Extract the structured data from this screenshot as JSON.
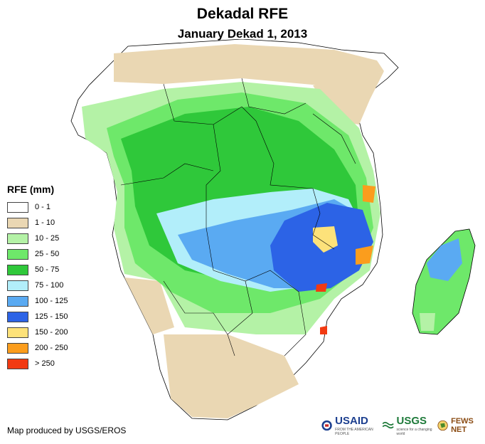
{
  "header": {
    "title": "Dekadal RFE",
    "subtitle": "January Dekad 1, 2013"
  },
  "legend": {
    "title": "RFE (mm)",
    "items": [
      {
        "label": "0 - 1",
        "color": "#ffffff"
      },
      {
        "label": "1 - 10",
        "color": "#ead7b3"
      },
      {
        "label": "10 - 25",
        "color": "#b4f2a6"
      },
      {
        "label": "25 - 50",
        "color": "#6ee86a"
      },
      {
        "label": "50 - 75",
        "color": "#2fc83a"
      },
      {
        "label": "75 - 100",
        "color": "#b2eefa"
      },
      {
        "label": "100 - 125",
        "color": "#5aaaf2"
      },
      {
        "label": "125 - 150",
        "color": "#2c63e6"
      },
      {
        "label": "150 - 200",
        "color": "#fde27a"
      },
      {
        "label": "200 - 250",
        "color": "#fb9d1d"
      },
      {
        "label": "> 250",
        "color": "#f23a12"
      }
    ]
  },
  "footer": {
    "credit": "Map produced by USGS/EROS"
  },
  "logos": {
    "usaid": "USAID",
    "usaid_tagline": "FROM THE AMERICAN PEOPLE",
    "usgs": "USGS",
    "usgs_tagline": "science for a changing world",
    "fews": "FEWS NET"
  }
}
